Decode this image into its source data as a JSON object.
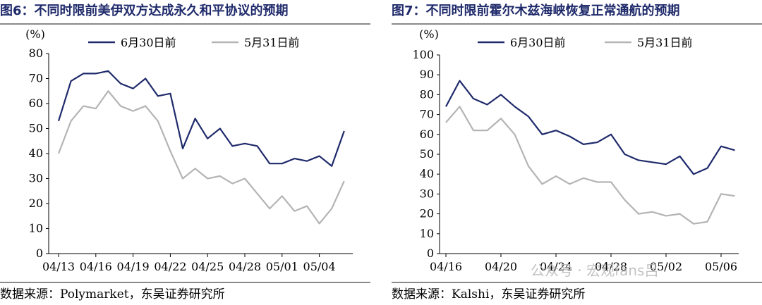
{
  "charts": [
    {
      "title": "图6：不同时限前美伊双方达成永久和平协议的预期",
      "source": "数据来源：Polymarket，东吴证券研究所",
      "chart_data": {
        "type": "line",
        "unit": "(%)",
        "ylim": [
          0,
          80
        ],
        "yticks": [
          0,
          10,
          20,
          30,
          40,
          50,
          60,
          70,
          80
        ],
        "xticks": [
          "04/13",
          "04/16",
          "04/19",
          "04/22",
          "04/25",
          "04/28",
          "05/01",
          "05/04"
        ],
        "legend_position": "top",
        "series": [
          {
            "name": "6月30日前",
            "color": "#1f2a6b",
            "values": [
              53,
              69,
              72,
              72,
              73,
              68,
              66,
              70,
              63,
              64,
              42,
              54,
              46,
              50,
              43,
              44,
              43,
              36,
              36,
              38,
              37,
              39,
              35,
              49
            ]
          },
          {
            "name": "5月31日前",
            "color": "#b4b4b4",
            "values": [
              40,
              53,
              59,
              58,
              65,
              59,
              57,
              59,
              53,
              41,
              30,
              34,
              30,
              31,
              28,
              30,
              24,
              18,
              23,
              17,
              19,
              12,
              18,
              29
            ]
          }
        ]
      }
    },
    {
      "title": "图7：不同时限前霍尔木兹海峡恢复正常通航的预期",
      "source": "数据来源：Kalshi，东吴证券研究所",
      "chart_data": {
        "type": "line",
        "unit": "(%)",
        "ylim": [
          0,
          100
        ],
        "yticks": [
          0,
          10,
          20,
          30,
          40,
          50,
          60,
          70,
          80,
          90,
          100
        ],
        "xticks": [
          "04/16",
          "04/20",
          "04/24",
          "04/28",
          "05/02",
          "05/06"
        ],
        "legend_position": "top",
        "series": [
          {
            "name": "6月30日前",
            "color": "#1f2a6b",
            "values": [
              74,
              87,
              78,
              75,
              80,
              74,
              69,
              60,
              62,
              59,
              55,
              56,
              60,
              50,
              47,
              46,
              45,
              49,
              40,
              43,
              54,
              52
            ]
          },
          {
            "name": "5月31日前",
            "color": "#b4b4b4",
            "values": [
              66,
              74,
              62,
              62,
              68,
              60,
              44,
              35,
              39,
              35,
              38,
              36,
              36,
              27,
              20,
              21,
              19,
              20,
              15,
              16,
              30,
              29
            ]
          }
        ]
      }
    }
  ],
  "watermark": "公众号 · 宏观fans吕"
}
